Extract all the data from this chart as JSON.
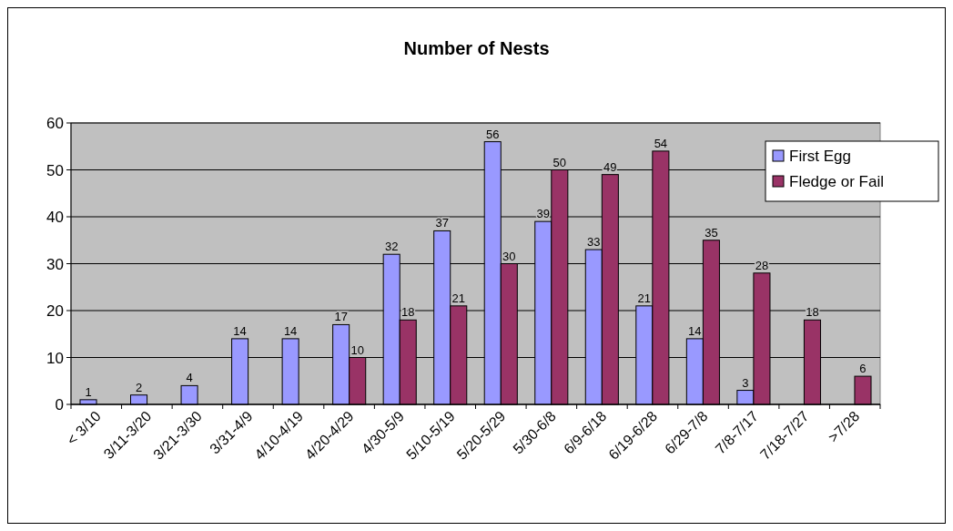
{
  "chart_data": {
    "type": "bar",
    "title": "Number of Nests",
    "categories": [
      "< 3/10",
      "3/11-3/20",
      "3/21-3/30",
      "3/31-4/9",
      "4/10-4/19",
      "4/20-4/29",
      "4/30-5/9",
      "5/10-5/19",
      "5/20-5/29",
      "5/30-6/8",
      "6/9-6/18",
      "6/19-6/28",
      "6/29-7/8",
      "7/8-7/17",
      "7/18-7/27",
      ">7/28"
    ],
    "series": [
      {
        "name": "First Egg",
        "color": "#9999ff",
        "values": [
          1,
          2,
          4,
          14,
          14,
          17,
          32,
          37,
          56,
          39,
          33,
          21,
          14,
          3,
          null,
          null
        ]
      },
      {
        "name": "Fledge or Fail",
        "color": "#993366",
        "values": [
          null,
          null,
          null,
          null,
          null,
          10,
          18,
          21,
          30,
          50,
          49,
          54,
          35,
          28,
          18,
          6
        ]
      }
    ],
    "ylim": [
      0,
      60
    ],
    "yticks": [
      0,
      10,
      20,
      30,
      40,
      50,
      60
    ],
    "grid": "y",
    "legend": "right",
    "data_labels": true
  }
}
